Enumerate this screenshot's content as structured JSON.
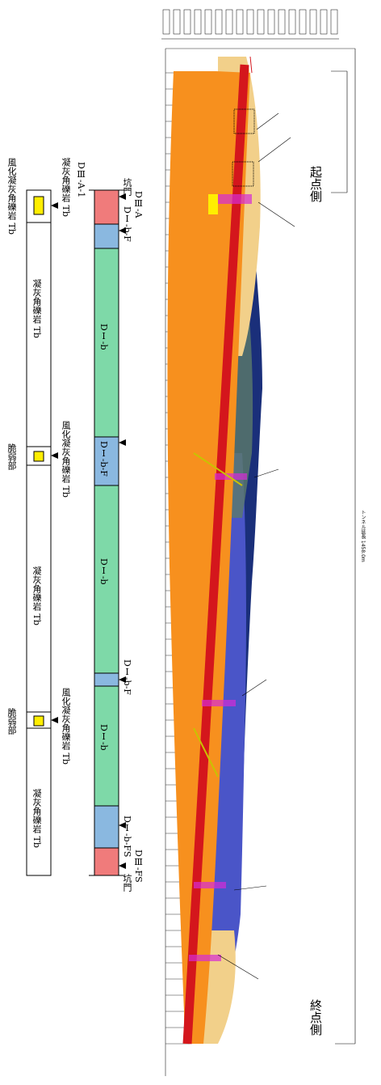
{
  "labels": {
    "start_side": "起点側",
    "end_side": "終点側",
    "tunnel_length": "トンネル延長 1458.0m"
  },
  "support_column": {
    "top_portal": "坑門",
    "end_portal": "坑門",
    "segments": [
      {
        "name": "DⅢ-A",
        "color": "#f07b7b"
      },
      {
        "name": "DⅠ-b-F",
        "color": "#8ab8e0"
      },
      {
        "name": "DⅠ-b",
        "color": "#7ed9a8"
      },
      {
        "name": "DⅠ-b-F",
        "color": "#8ab8e0"
      },
      {
        "name": "DⅠ-b",
        "color": "#7ed9a8"
      },
      {
        "name": "DⅠ-b-F",
        "color": "#8ab8e0"
      },
      {
        "name": "DⅠ-b",
        "color": "#7ed9a8"
      },
      {
        "name": "DⅠ-b-FS",
        "color": "#8ab8e0"
      },
      {
        "name": "DⅢ-FS",
        "color": "#f07b7b"
      }
    ],
    "side_labels": [
      "DⅢ-A-1",
      "DⅠ-b-F",
      "DⅠ-b-F",
      "DⅠ-b-FS",
      "DⅢ-FS"
    ]
  },
  "geology_column": {
    "top_label": "風化凝灰角礫岩 Tb",
    "top_label2": "凝灰角礫岩 Tb",
    "mid_label1": "凝灰角礫岩 Tb",
    "weathered1": "風化凝灰角礫岩 Tb",
    "weak1": "脆弱部",
    "mid_label2": "凝灰角礫岩 Tb",
    "weathered2": "風化凝灰角礫岩 Tb",
    "weak2": "脆弱部",
    "mid_label3": "凝灰角礫岩 Tb"
  },
  "colors": {
    "orange": "#f7901e",
    "red": "#d4161c",
    "navy": "#1a2f7a",
    "blue": "#4a55c8",
    "tan": "#f2d08a",
    "yellow": "#ffee00",
    "magenta": "#d62bd6"
  }
}
